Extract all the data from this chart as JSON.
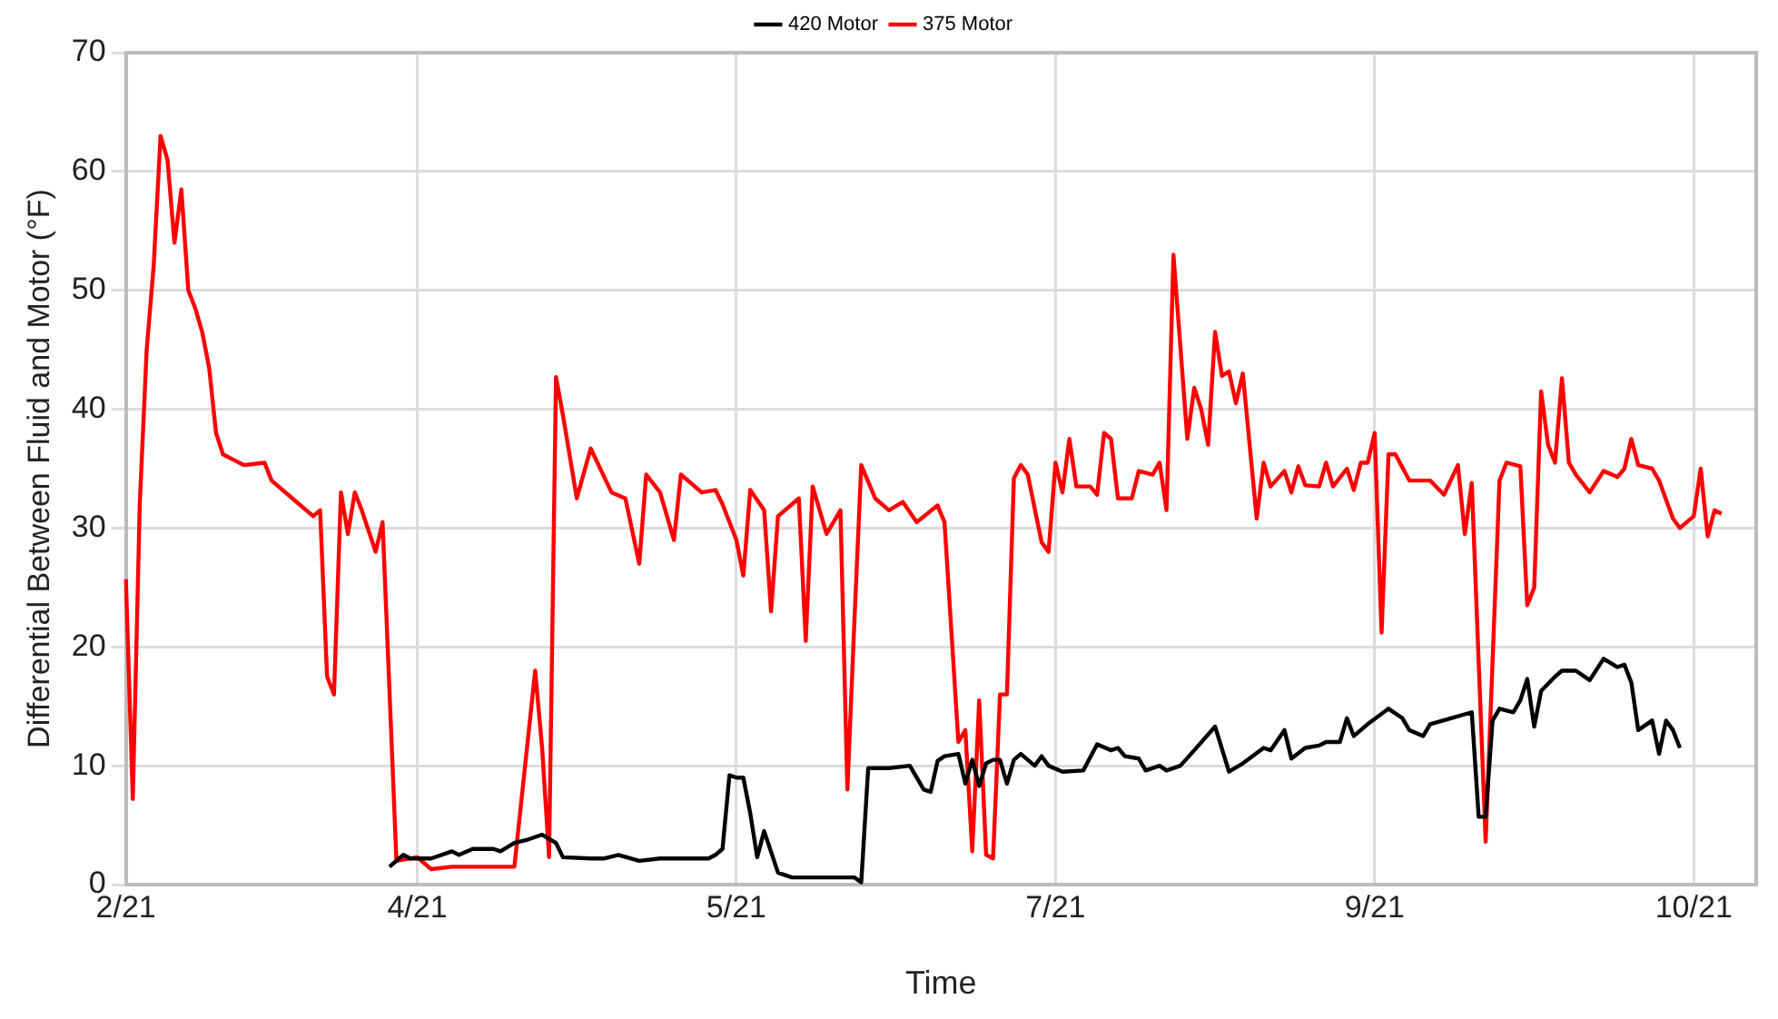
{
  "chart_data": {
    "type": "line",
    "xlabel": "Time",
    "ylabel": "Differential Between Fluid and Motor (°F)",
    "categories": [
      "2/21",
      null,
      null,
      null,
      null,
      null,
      null,
      null,
      null,
      null,
      null,
      null,
      null,
      null,
      null,
      null,
      null,
      null,
      null,
      null,
      null,
      null,
      null,
      null,
      null,
      null,
      null,
      null,
      null,
      null,
      null,
      null,
      null,
      null,
      null,
      null,
      null,
      null,
      null,
      null,
      null,
      null,
      "4/21",
      null,
      null,
      null,
      null,
      null,
      null,
      null,
      null,
      null,
      null,
      null,
      null,
      null,
      null,
      null,
      null,
      null,
      null,
      null,
      null,
      null,
      null,
      null,
      null,
      null,
      null,
      null,
      null,
      null,
      null,
      null,
      null,
      null,
      null,
      null,
      null,
      null,
      null,
      null,
      null,
      null,
      null,
      null,
      null,
      null,
      "5/21",
      null,
      null,
      null,
      null,
      null,
      null,
      null,
      null,
      null,
      null,
      null,
      null,
      null,
      null,
      null,
      null,
      null,
      null,
      null,
      null,
      null,
      null,
      null,
      null,
      null,
      null,
      null,
      null,
      null,
      null,
      null,
      null,
      null,
      null,
      null,
      null,
      null,
      null,
      null,
      null,
      null,
      null,
      null,
      null,
      null,
      "7/21",
      null,
      null,
      null,
      null,
      null,
      null,
      null,
      null,
      null,
      null,
      null,
      null,
      null,
      null,
      null,
      null,
      null,
      null,
      null,
      null,
      null,
      null,
      null,
      null,
      null,
      null,
      null,
      null,
      null,
      null,
      null,
      null,
      null,
      null,
      null,
      null,
      null,
      null,
      null,
      null,
      null,
      null,
      null,
      null,
      null,
      "9/21",
      null,
      null,
      null,
      null,
      null,
      null,
      null,
      null,
      null,
      null,
      null,
      null,
      null,
      null,
      null,
      null,
      null,
      null,
      null,
      null,
      null,
      null,
      null,
      null,
      null,
      null,
      null,
      null,
      null,
      null,
      null,
      null,
      null,
      null,
      null,
      null,
      null,
      null,
      null,
      null,
      null,
      null,
      null,
      null,
      null,
      "10/21",
      null,
      null,
      null,
      null,
      null,
      null,
      null,
      null,
      null
    ],
    "ylim": [
      0,
      70
    ],
    "yticks": [
      0,
      10,
      20,
      30,
      40,
      50,
      60,
      70
    ],
    "grid": true,
    "legend": "top",
    "marker": "none",
    "line_style": "solid",
    "series": [
      {
        "name": "420 Motor",
        "color": "#000000",
        "values": [
          null,
          null,
          null,
          null,
          null,
          null,
          null,
          null,
          null,
          null,
          null,
          null,
          null,
          null,
          null,
          null,
          null,
          null,
          null,
          null,
          null,
          null,
          null,
          null,
          null,
          null,
          null,
          null,
          null,
          null,
          null,
          null,
          null,
          null,
          null,
          null,
          null,
          null,
          1.5,
          null,
          2.5,
          2.2,
          null,
          2.2,
          2.2,
          null,
          null,
          2.8,
          2.5,
          null,
          3,
          null,
          null,
          3,
          2.8,
          null,
          3.5,
          null,
          3.8,
          null,
          4.2,
          null,
          3.5,
          2.3,
          null,
          null,
          null,
          2.2,
          null,
          2.2,
          null,
          2.5,
          null,
          null,
          2,
          null,
          null,
          2.2,
          null,
          null,
          2.2,
          null,
          null,
          null,
          2.2,
          2.5,
          3,
          9.2,
          9,
          9,
          6,
          2.3,
          4.5,
          null,
          1,
          null,
          0.6,
          null,
          null,
          null,
          null,
          null,
          0.6,
          null,
          null,
          0.6,
          0.2,
          9.8,
          null,
          null,
          9.8,
          null,
          null,
          10,
          null,
          8,
          7.8,
          10.4,
          10.8,
          null,
          11,
          8.5,
          10.5,
          8.3,
          10.2,
          10.5,
          10.5,
          8.5,
          10.5,
          11,
          null,
          10,
          10.8,
          10,
          null,
          9.5,
          null,
          null,
          9.6,
          null,
          11.8,
          null,
          11.3,
          11.5,
          10.8,
          null,
          10.6,
          9.6,
          null,
          10,
          9.6,
          null,
          10,
          null,
          11.3,
          null,
          null,
          13.3,
          null,
          9.5,
          null,
          10.2,
          null,
          null,
          11.5,
          11.3,
          null,
          13,
          10.6,
          null,
          11.5,
          null,
          11.7,
          12,
          null,
          12,
          14,
          12.5,
          null,
          13.5,
          null,
          null,
          14.8,
          null,
          14,
          13,
          null,
          12.5,
          13.5,
          null,
          null,
          14,
          null,
          null,
          14.5,
          5.7,
          5.7,
          13.8,
          14.8,
          null,
          14.5,
          15.5,
          17.3,
          13.3,
          16.3,
          null,
          17.5,
          18,
          null,
          18,
          null,
          17.2,
          null,
          19,
          null,
          18.3,
          18.5,
          17,
          13,
          null,
          13.8,
          11,
          13.8,
          13,
          11.5,
          null,
          null,
          null,
          null,
          null,
          null,
          null,
          null,
          null,
          null,
          null
        ]
      },
      {
        "name": "375 Motor",
        "color": "#ff0000",
        "values": [
          25.7,
          7.2,
          32,
          45,
          52,
          63,
          61,
          54,
          58.5,
          50,
          48.5,
          46.5,
          43.5,
          38,
          36.2,
          null,
          null,
          35.3,
          null,
          null,
          35.5,
          34,
          null,
          null,
          32.5,
          null,
          null,
          31,
          31.5,
          17.5,
          16,
          33,
          29.5,
          33,
          31.5,
          null,
          28,
          30.5,
          null,
          2,
          null,
          null,
          2.3,
          null,
          1.3,
          null,
          null,
          1.5,
          null,
          null,
          null,
          null,
          null,
          null,
          null,
          null,
          1.5,
          null,
          null,
          18,
          11.5,
          2.3,
          42.7,
          39.5,
          null,
          32.5,
          null,
          36.7,
          null,
          null,
          33,
          null,
          32.5,
          null,
          27,
          34.5,
          null,
          33,
          null,
          29,
          34.5,
          null,
          null,
          33,
          null,
          33.2,
          32,
          null,
          29,
          26,
          33.2,
          null,
          31.5,
          23,
          31,
          null,
          null,
          32.5,
          20.5,
          33.5,
          null,
          29.5,
          null,
          31.5,
          8,
          22,
          35.3,
          null,
          32.5,
          null,
          31.5,
          null,
          32.2,
          null,
          30.5,
          null,
          null,
          31.9,
          30.5,
          null,
          12,
          13,
          2.8,
          15.5,
          2.5,
          2.2,
          16,
          16,
          34.2,
          35.3,
          34.5,
          null,
          28.8,
          28,
          35.5,
          33,
          37.5,
          33.5,
          null,
          33.5,
          32.8,
          38,
          37.5,
          32.5,
          null,
          32.5,
          34.8,
          null,
          34.5,
          35.5,
          31.5,
          53,
          null,
          37.5,
          41.8,
          40,
          37,
          46.5,
          42.8,
          43.2,
          40.5,
          43,
          null,
          30.8,
          35.5,
          33.5,
          null,
          34.8,
          33,
          35.2,
          33.6,
          null,
          33.5,
          35.5,
          33.5,
          null,
          35,
          33.2,
          35.5,
          35.5,
          38,
          21.2,
          36.2,
          36.2,
          null,
          34,
          null,
          null,
          34,
          null,
          32.8,
          null,
          35.3,
          29.5,
          33.8,
          null,
          3.6,
          null,
          34,
          35.5,
          null,
          35.2,
          23.5,
          25,
          41.5,
          37,
          35.5,
          42.6,
          35.5,
          34.5,
          null,
          33,
          null,
          34.8,
          null,
          34.3,
          35,
          37.5,
          35.3,
          null,
          35,
          34,
          null,
          30.8,
          30,
          null,
          31,
          35,
          29.3,
          31.5,
          31.2,
          null,
          null,
          null,
          null,
          null
        ]
      }
    ]
  }
}
